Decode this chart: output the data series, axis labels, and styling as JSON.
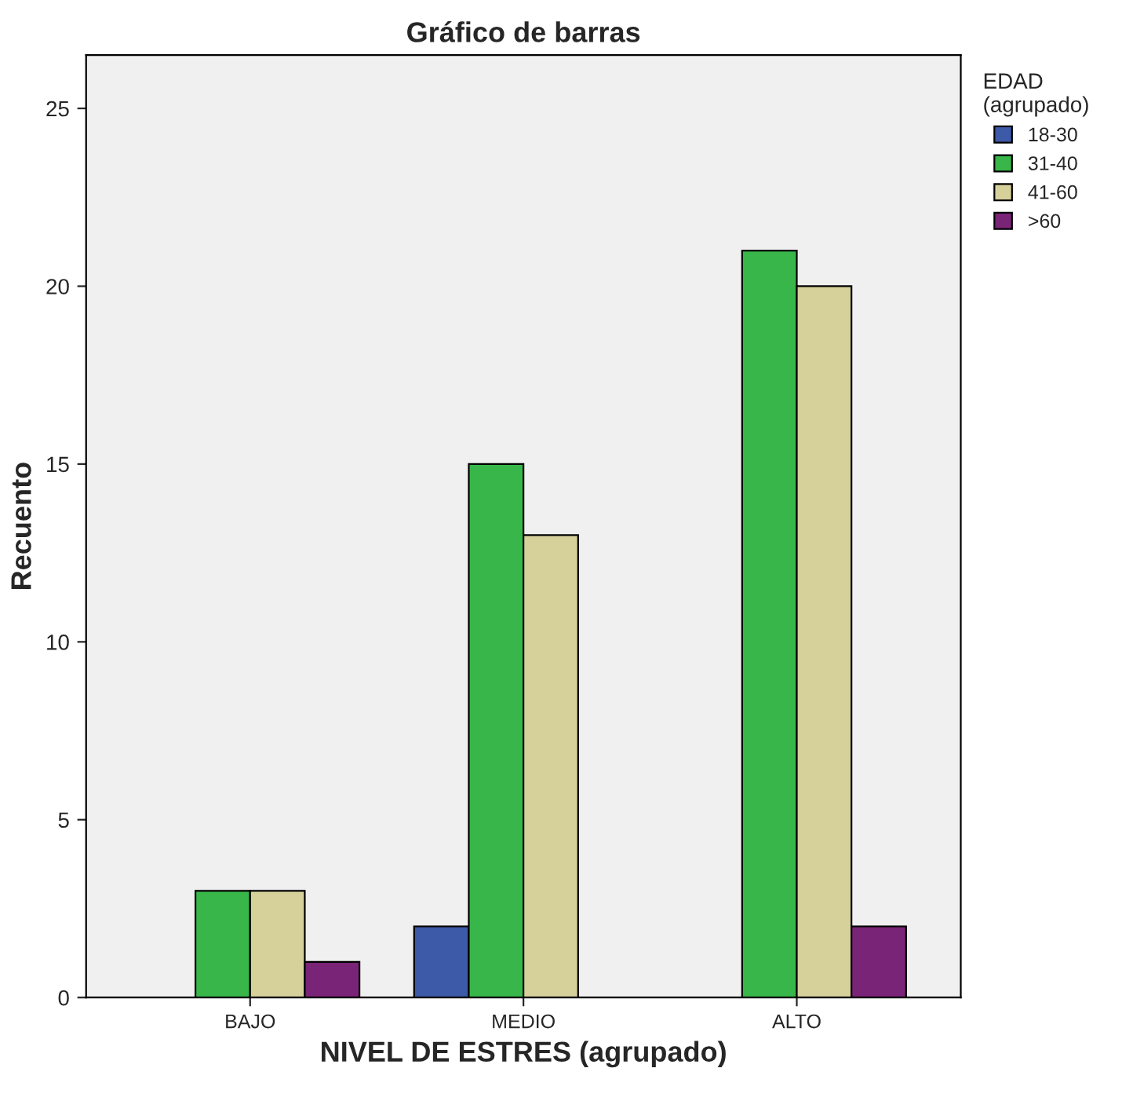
{
  "chart_data": {
    "type": "bar",
    "title": "Gráfico de barras",
    "xlabel": "NIVEL DE ESTRES (agrupado)",
    "ylabel": "Recuento",
    "legend_title": "EDAD\n(agrupado)",
    "categories": [
      "BAJO",
      "MEDIO",
      "ALTO"
    ],
    "series": [
      {
        "name": "18-30",
        "color": "#3d5aa8",
        "values": [
          null,
          2,
          null
        ]
      },
      {
        "name": "31-40",
        "color": "#38b64a",
        "values": [
          3,
          15,
          21
        ]
      },
      {
        "name": "41-60",
        "color": "#d6d19b",
        "values": [
          3,
          13,
          20
        ]
      },
      {
        "name": ">60",
        "color": "#7a2478",
        "values": [
          1,
          null,
          2
        ]
      }
    ],
    "ylim": [
      0,
      26.5
    ],
    "yticks": [
      0,
      5,
      10,
      15,
      20,
      25
    ],
    "grid": false,
    "legend": "top right"
  }
}
